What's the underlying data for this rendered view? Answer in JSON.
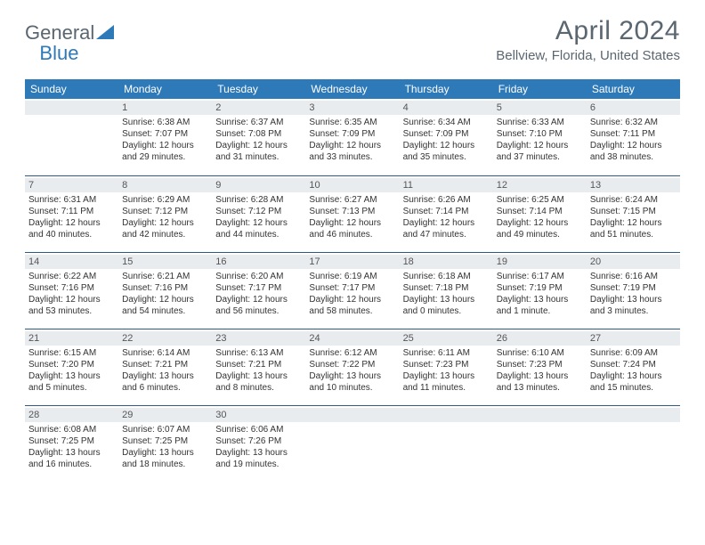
{
  "brand": {
    "part1": "General",
    "part2": "Blue"
  },
  "title": "April 2024",
  "location": "Bellview, Florida, United States",
  "colors": {
    "header_bg": "#2e79b8",
    "header_text": "#ffffff",
    "cell_border": "#2e5b86",
    "daynum_bg": "#e9ecef",
    "text": "#333333",
    "muted": "#5a6670"
  },
  "dayNames": [
    "Sunday",
    "Monday",
    "Tuesday",
    "Wednesday",
    "Thursday",
    "Friday",
    "Saturday"
  ],
  "weeks": [
    [
      {
        "n": "",
        "sr": "",
        "ss": "",
        "dl": ""
      },
      {
        "n": "1",
        "sr": "Sunrise: 6:38 AM",
        "ss": "Sunset: 7:07 PM",
        "dl": "Daylight: 12 hours and 29 minutes."
      },
      {
        "n": "2",
        "sr": "Sunrise: 6:37 AM",
        "ss": "Sunset: 7:08 PM",
        "dl": "Daylight: 12 hours and 31 minutes."
      },
      {
        "n": "3",
        "sr": "Sunrise: 6:35 AM",
        "ss": "Sunset: 7:09 PM",
        "dl": "Daylight: 12 hours and 33 minutes."
      },
      {
        "n": "4",
        "sr": "Sunrise: 6:34 AM",
        "ss": "Sunset: 7:09 PM",
        "dl": "Daylight: 12 hours and 35 minutes."
      },
      {
        "n": "5",
        "sr": "Sunrise: 6:33 AM",
        "ss": "Sunset: 7:10 PM",
        "dl": "Daylight: 12 hours and 37 minutes."
      },
      {
        "n": "6",
        "sr": "Sunrise: 6:32 AM",
        "ss": "Sunset: 7:11 PM",
        "dl": "Daylight: 12 hours and 38 minutes."
      }
    ],
    [
      {
        "n": "7",
        "sr": "Sunrise: 6:31 AM",
        "ss": "Sunset: 7:11 PM",
        "dl": "Daylight: 12 hours and 40 minutes."
      },
      {
        "n": "8",
        "sr": "Sunrise: 6:29 AM",
        "ss": "Sunset: 7:12 PM",
        "dl": "Daylight: 12 hours and 42 minutes."
      },
      {
        "n": "9",
        "sr": "Sunrise: 6:28 AM",
        "ss": "Sunset: 7:12 PM",
        "dl": "Daylight: 12 hours and 44 minutes."
      },
      {
        "n": "10",
        "sr": "Sunrise: 6:27 AM",
        "ss": "Sunset: 7:13 PM",
        "dl": "Daylight: 12 hours and 46 minutes."
      },
      {
        "n": "11",
        "sr": "Sunrise: 6:26 AM",
        "ss": "Sunset: 7:14 PM",
        "dl": "Daylight: 12 hours and 47 minutes."
      },
      {
        "n": "12",
        "sr": "Sunrise: 6:25 AM",
        "ss": "Sunset: 7:14 PM",
        "dl": "Daylight: 12 hours and 49 minutes."
      },
      {
        "n": "13",
        "sr": "Sunrise: 6:24 AM",
        "ss": "Sunset: 7:15 PM",
        "dl": "Daylight: 12 hours and 51 minutes."
      }
    ],
    [
      {
        "n": "14",
        "sr": "Sunrise: 6:22 AM",
        "ss": "Sunset: 7:16 PM",
        "dl": "Daylight: 12 hours and 53 minutes."
      },
      {
        "n": "15",
        "sr": "Sunrise: 6:21 AM",
        "ss": "Sunset: 7:16 PM",
        "dl": "Daylight: 12 hours and 54 minutes."
      },
      {
        "n": "16",
        "sr": "Sunrise: 6:20 AM",
        "ss": "Sunset: 7:17 PM",
        "dl": "Daylight: 12 hours and 56 minutes."
      },
      {
        "n": "17",
        "sr": "Sunrise: 6:19 AM",
        "ss": "Sunset: 7:17 PM",
        "dl": "Daylight: 12 hours and 58 minutes."
      },
      {
        "n": "18",
        "sr": "Sunrise: 6:18 AM",
        "ss": "Sunset: 7:18 PM",
        "dl": "Daylight: 13 hours and 0 minutes."
      },
      {
        "n": "19",
        "sr": "Sunrise: 6:17 AM",
        "ss": "Sunset: 7:19 PM",
        "dl": "Daylight: 13 hours and 1 minute."
      },
      {
        "n": "20",
        "sr": "Sunrise: 6:16 AM",
        "ss": "Sunset: 7:19 PM",
        "dl": "Daylight: 13 hours and 3 minutes."
      }
    ],
    [
      {
        "n": "21",
        "sr": "Sunrise: 6:15 AM",
        "ss": "Sunset: 7:20 PM",
        "dl": "Daylight: 13 hours and 5 minutes."
      },
      {
        "n": "22",
        "sr": "Sunrise: 6:14 AM",
        "ss": "Sunset: 7:21 PM",
        "dl": "Daylight: 13 hours and 6 minutes."
      },
      {
        "n": "23",
        "sr": "Sunrise: 6:13 AM",
        "ss": "Sunset: 7:21 PM",
        "dl": "Daylight: 13 hours and 8 minutes."
      },
      {
        "n": "24",
        "sr": "Sunrise: 6:12 AM",
        "ss": "Sunset: 7:22 PM",
        "dl": "Daylight: 13 hours and 10 minutes."
      },
      {
        "n": "25",
        "sr": "Sunrise: 6:11 AM",
        "ss": "Sunset: 7:23 PM",
        "dl": "Daylight: 13 hours and 11 minutes."
      },
      {
        "n": "26",
        "sr": "Sunrise: 6:10 AM",
        "ss": "Sunset: 7:23 PM",
        "dl": "Daylight: 13 hours and 13 minutes."
      },
      {
        "n": "27",
        "sr": "Sunrise: 6:09 AM",
        "ss": "Sunset: 7:24 PM",
        "dl": "Daylight: 13 hours and 15 minutes."
      }
    ],
    [
      {
        "n": "28",
        "sr": "Sunrise: 6:08 AM",
        "ss": "Sunset: 7:25 PM",
        "dl": "Daylight: 13 hours and 16 minutes."
      },
      {
        "n": "29",
        "sr": "Sunrise: 6:07 AM",
        "ss": "Sunset: 7:25 PM",
        "dl": "Daylight: 13 hours and 18 minutes."
      },
      {
        "n": "30",
        "sr": "Sunrise: 6:06 AM",
        "ss": "Sunset: 7:26 PM",
        "dl": "Daylight: 13 hours and 19 minutes."
      },
      {
        "n": "",
        "sr": "",
        "ss": "",
        "dl": ""
      },
      {
        "n": "",
        "sr": "",
        "ss": "",
        "dl": ""
      },
      {
        "n": "",
        "sr": "",
        "ss": "",
        "dl": ""
      },
      {
        "n": "",
        "sr": "",
        "ss": "",
        "dl": ""
      }
    ]
  ]
}
